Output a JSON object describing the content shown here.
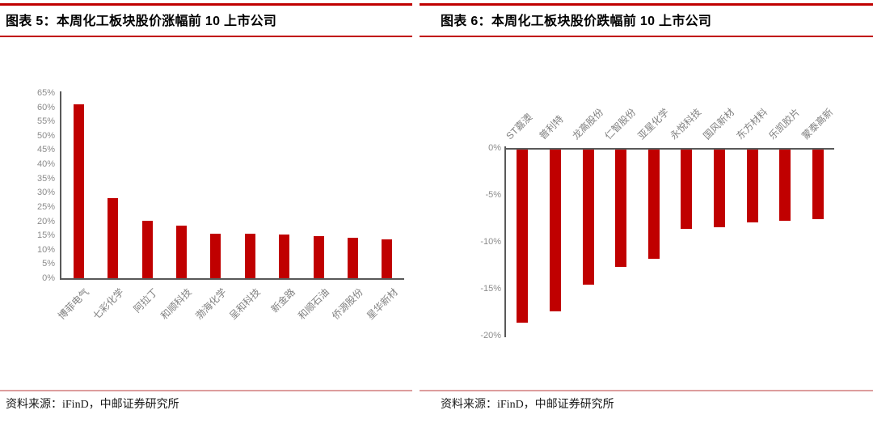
{
  "colors": {
    "accent": "#c00000",
    "divider": "#dd9d9d",
    "axis": "#595959",
    "tick_text": "#8c8c8c",
    "category_text": "#808080",
    "bar": "#c00000"
  },
  "left_panel": {
    "title": "图表 5：本周化工板块股价涨幅前 10 上市公司",
    "source": "资料来源：iFinD，中邮证券研究所"
  },
  "right_panel": {
    "title": "图表 6：本周化工板块股价跌幅前 10 上市公司",
    "source": "资料来源：iFinD，中邮证券研究所"
  },
  "chart_data": [
    {
      "type": "bar",
      "title": "本周化工板块股价涨幅前 10 上市公司",
      "categories": [
        "博菲电气",
        "七彩化学",
        "阿拉丁",
        "和顺科技",
        "渤海化学",
        "呈和科技",
        "新金路",
        "和顺石油",
        "侨源股份",
        "星华新材"
      ],
      "values": [
        61,
        28,
        20.2,
        18.5,
        15.5,
        15.5,
        15.4,
        14.9,
        14.3,
        13.7
      ],
      "xlabel": "",
      "ylabel": "",
      "ylim": [
        0,
        65
      ],
      "ytick_step": 5,
      "ytick_format": "percent",
      "grid": false,
      "legend": false,
      "bar_color": "#c00000",
      "category_label_position": "bottom-rotated-45"
    },
    {
      "type": "bar",
      "title": "本周化工板块股价跌幅前 10 上市公司",
      "categories": [
        "ST嘉澳",
        "普利特",
        "龙高股份",
        "仁智股份",
        "亚星化学",
        "永悦科技",
        "国风新材",
        "东方材料",
        "乐凯胶片",
        "蒙泰高新"
      ],
      "values": [
        -18.5,
        -17.3,
        -14.4,
        -12.5,
        -11.7,
        -8.5,
        -8.3,
        -7.8,
        -7.6,
        -7.4
      ],
      "xlabel": "",
      "ylabel": "",
      "ylim": [
        -20,
        0
      ],
      "ytick_step": 5,
      "ytick_format": "percent",
      "grid": false,
      "legend": false,
      "bar_color": "#c00000",
      "category_label_position": "top-rotated-45"
    }
  ]
}
